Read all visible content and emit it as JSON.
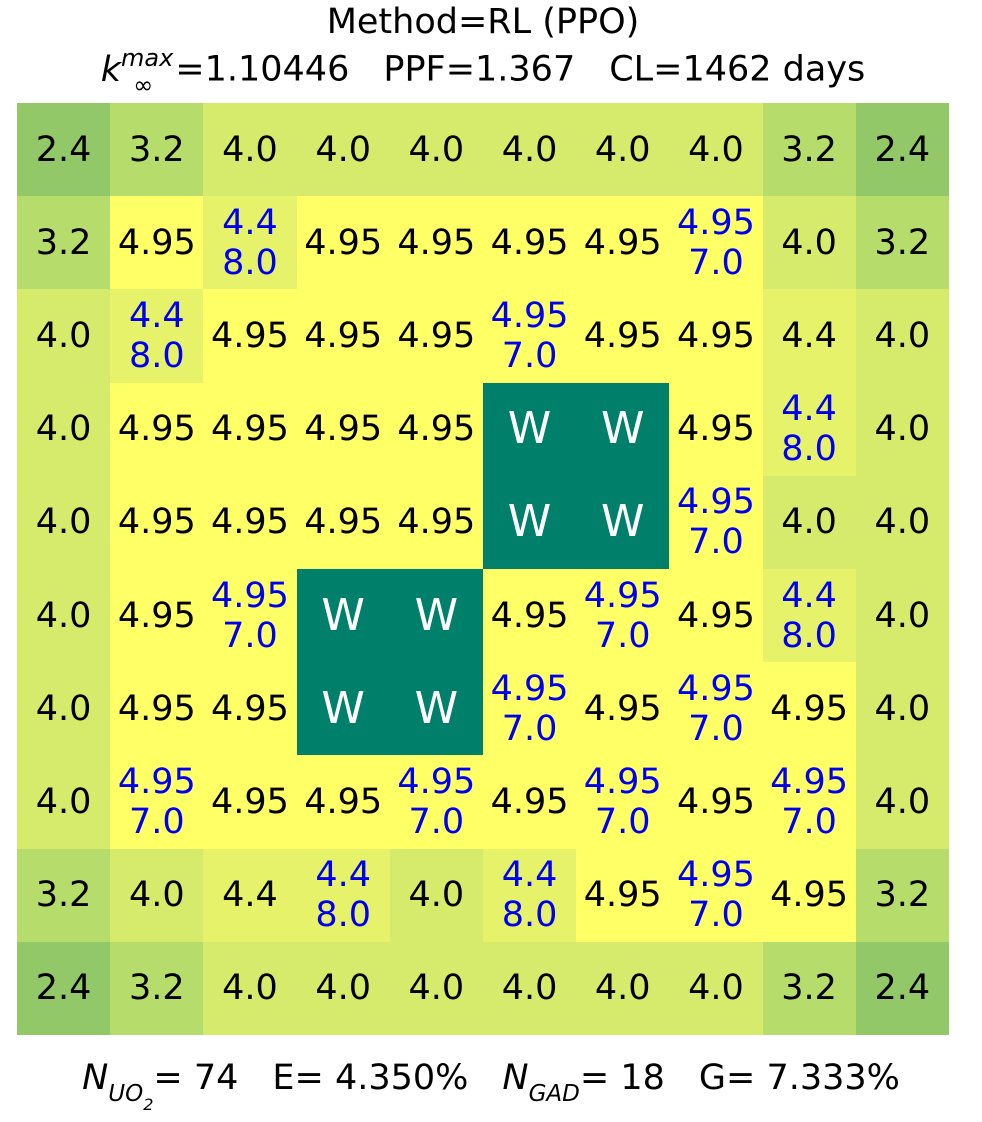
{
  "title": {
    "line1": "Method=RL (PPO)",
    "k_symbol": "k",
    "k_sup": "max",
    "k_sub": "∞",
    "k_value": "=1.10446",
    "ppf": "PPF=1.367",
    "cl": "CL=1462 days"
  },
  "footer": {
    "n_uo2_symbol": "N",
    "n_uo2_sub": "UO",
    "n_uo2_subsub": "2",
    "n_uo2_value": "= 74",
    "enrichment": "E= 4.350%",
    "n_gad_symbol": "N",
    "n_gad_sub": "GAD",
    "n_gad_value": "= 18",
    "gad_conc": "G= 7.333%"
  },
  "colors": {
    "water": "#00806a",
    "gad_text": "#0000ee",
    "text": "#000000",
    "water_text": "#ffffff",
    "scale": {
      "2.4": "#93c868",
      "3.2": "#b6dc6c",
      "4.0": "#d6ea6c",
      "4.4": "#e6f26a",
      "4.95": "#ffff66",
      "W": "#00806a"
    }
  },
  "chart_data": {
    "type": "heatmap",
    "rows": 10,
    "cols": 10,
    "cells": [
      [
        "2.4",
        "3.2",
        "4.0",
        "4.0",
        "4.0",
        "4.0",
        "4.0",
        "4.0",
        "3.2",
        "2.4"
      ],
      [
        "3.2",
        "4.95",
        "4.4|8.0",
        "4.95",
        "4.95",
        "4.95",
        "4.95",
        "4.95|7.0",
        "4.0",
        "3.2"
      ],
      [
        "4.0",
        "4.4|8.0",
        "4.95",
        "4.95",
        "4.95",
        "4.95|7.0",
        "4.95",
        "4.95",
        "4.4",
        "4.0"
      ],
      [
        "4.0",
        "4.95",
        "4.95",
        "4.95",
        "4.95",
        "W",
        "W",
        "4.95",
        "4.4|8.0",
        "4.0"
      ],
      [
        "4.0",
        "4.95",
        "4.95",
        "4.95",
        "4.95",
        "W",
        "W",
        "4.95|7.0",
        "4.0",
        "4.0"
      ],
      [
        "4.0",
        "4.95",
        "4.95|7.0",
        "W",
        "W",
        "4.95",
        "4.95|7.0",
        "4.95",
        "4.4|8.0",
        "4.0"
      ],
      [
        "4.0",
        "4.95",
        "4.95",
        "W",
        "W",
        "4.95|7.0",
        "4.95",
        "4.95|7.0",
        "4.95",
        "4.0"
      ],
      [
        "4.0",
        "4.95|7.0",
        "4.95",
        "4.95",
        "4.95|7.0",
        "4.95",
        "4.95|7.0",
        "4.95",
        "4.95|7.0",
        "4.0"
      ],
      [
        "3.2",
        "4.0",
        "4.4",
        "4.4|8.0",
        "4.0",
        "4.4|8.0",
        "4.95",
        "4.95|7.0",
        "4.95",
        "3.2"
      ],
      [
        "2.4",
        "3.2",
        "4.0",
        "4.0",
        "4.0",
        "4.0",
        "4.0",
        "4.0",
        "3.2",
        "2.4"
      ]
    ]
  }
}
